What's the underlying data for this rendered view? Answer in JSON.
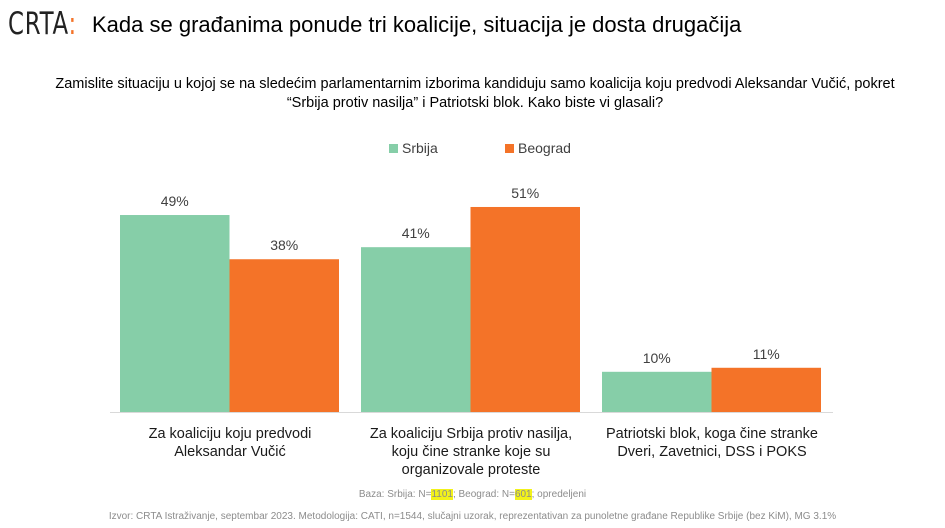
{
  "logo": {
    "text": "CRTA",
    "mark": ":"
  },
  "header": {
    "title": "Kada se građanima ponude tri koalicije, situacija je dosta drugačija"
  },
  "chart_data": {
    "type": "bar",
    "title": "Zamislite situaciju u kojoj se na sledećim parlamentarnim izborima kandiduju samo koalicija koju predvodi Aleksandar Vučić, pokret “Srbija protiv nasilja” i Patriotski blok. Kako biste vi glasali?",
    "categories": [
      "Za koaliciju koju predvodi Aleksandar Vučić",
      "Za koaliciju Srbija protiv nasilja, koju čine stranke koje su organizovale proteste",
      "Patriotski blok, koga čine stranke Dveri, Zavetnici, DSS i POKS"
    ],
    "series": [
      {
        "name": "Srbija",
        "values": [
          49,
          41,
          10
        ],
        "labels": [
          "49%",
          "41%",
          "10%"
        ],
        "color": "#86cea8"
      },
      {
        "name": "Beograd",
        "values": [
          38,
          51,
          11
        ],
        "labels": [
          "38%",
          "51%",
          "11%"
        ],
        "color": "#f47328"
      }
    ],
    "ylim": [
      0,
      60
    ],
    "grid": false,
    "legend": "top"
  },
  "footer": {
    "base_prefix": "Baza: Srbija: N=",
    "base_n1": "1101",
    "base_mid": "; Beograd: N=",
    "base_n2": "601",
    "base_suffix": "; opredeljeni",
    "source": "Izvor: CRTA Istraživanje, septembar 2023. Metodologija: CATI, n=1544, slučajni uzorak, reprezentativan za punoletne građane Republike Srbije (bez KiM), MG 3.1%"
  }
}
